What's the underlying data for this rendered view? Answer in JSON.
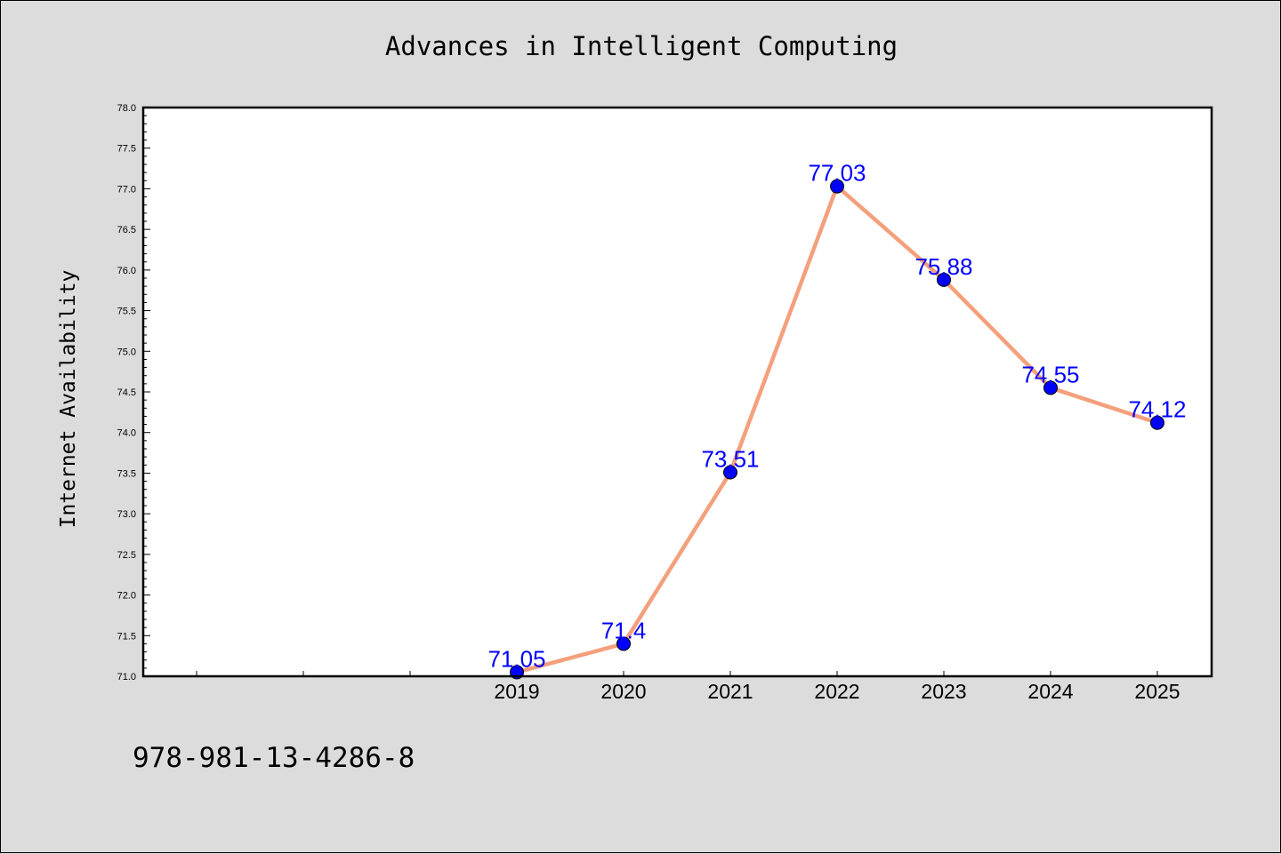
{
  "chart_data": {
    "type": "line",
    "title": "Advances in Intelligent Computing",
    "ylabel": "Internet Availability",
    "xlabel": "",
    "x": [
      "2019",
      "2020",
      "2021",
      "2022",
      "2023",
      "2024",
      "2025"
    ],
    "series": [
      {
        "values": [
          71.05,
          71.4,
          73.51,
          77.03,
          75.88,
          74.55,
          74.12
        ]
      }
    ],
    "data_labels": [
      "71.05",
      "71.4",
      "73.51",
      "77.03",
      "75.88",
      "74.55",
      "74.12"
    ],
    "ylim": [
      71.0,
      78.0
    ],
    "yticks": [
      "71.0",
      "71.5",
      "72.0",
      "72.5",
      "73.0",
      "73.5",
      "74.0",
      "74.5",
      "75.0",
      "75.5",
      "76.0",
      "76.5",
      "77.0",
      "77.5",
      "78.0"
    ],
    "grid": false,
    "legend": "none",
    "colors": {
      "line": "#f4a07c",
      "marker": "#0000ff",
      "labels": "#0000ff",
      "background": "#dcdcdc",
      "plot_area": "#ffffff"
    }
  },
  "footer": {
    "isbn": "978-981-13-4286-8"
  }
}
